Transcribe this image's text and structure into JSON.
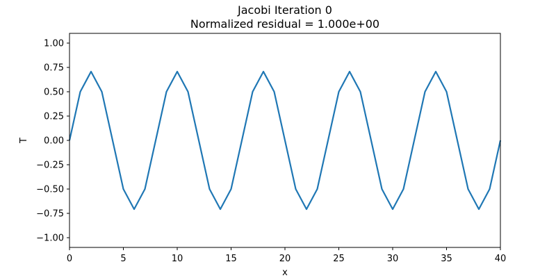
{
  "chart_data": {
    "type": "line",
    "title": "Jacobi Iteration 0",
    "subtitle": "Normalized residual = 1.000e+00",
    "xlabel": "x",
    "ylabel": "T",
    "xlim": [
      0,
      40
    ],
    "ylim": [
      -1.1,
      1.1
    ],
    "xticks": [
      0,
      5,
      10,
      15,
      20,
      25,
      30,
      35,
      40
    ],
    "yticks": [
      -1.0,
      -0.75,
      -0.5,
      -0.25,
      0.0,
      0.25,
      0.5,
      0.75,
      1.0
    ],
    "xtick_labels": [
      "0",
      "5",
      "10",
      "15",
      "20",
      "25",
      "30",
      "35",
      "40"
    ],
    "ytick_labels": [
      "−1.00",
      "−0.75",
      "−0.50",
      "−0.25",
      "0.00",
      "0.25",
      "0.50",
      "0.75",
      "1.00"
    ],
    "grid": false,
    "series_color": "#1f77b4",
    "series": [
      {
        "x": [
          0,
          1,
          2,
          3,
          4,
          5,
          6,
          7,
          8,
          9,
          10,
          11,
          12,
          13,
          14,
          15,
          16,
          17,
          18,
          19,
          20,
          21,
          22,
          23,
          24,
          25,
          26,
          27,
          28,
          29,
          30,
          31,
          32,
          33,
          34,
          35,
          36,
          37,
          38,
          39,
          40
        ],
        "values": [
          0,
          0.5,
          0.707,
          0.5,
          0,
          -0.5,
          -0.707,
          -0.5,
          0,
          0.5,
          0.707,
          0.5,
          0,
          -0.5,
          -0.707,
          -0.5,
          0,
          0.5,
          0.707,
          0.5,
          0,
          -0.5,
          -0.707,
          -0.5,
          0,
          0.5,
          0.707,
          0.5,
          0,
          -0.5,
          -0.707,
          -0.5,
          0,
          0.5,
          0.707,
          0.5,
          0,
          -0.5,
          -0.707,
          -0.5,
          0
        ]
      }
    ]
  }
}
